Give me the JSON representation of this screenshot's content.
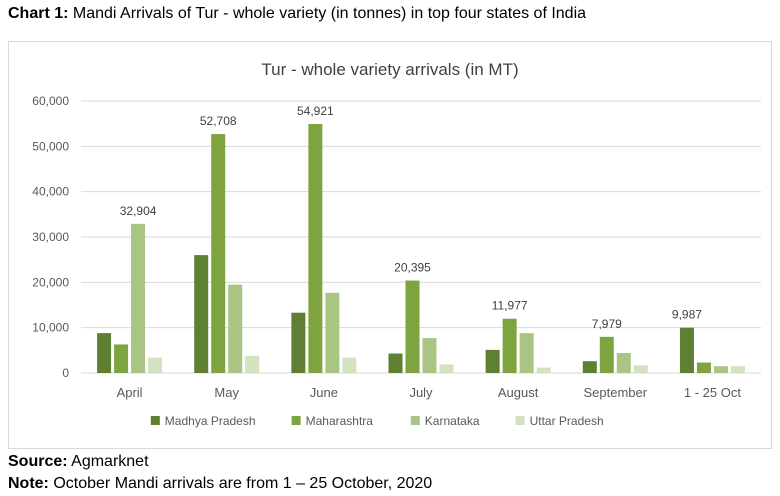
{
  "caption": {
    "prefix": "Chart 1:",
    "text": " Mandi Arrivals of Tur - whole variety (in tonnes) in top four states of India"
  },
  "source": {
    "label": "Source:",
    "text": " Agmarknet"
  },
  "note": {
    "label": "Note:",
    "text": " October Mandi arrivals are from 1 – 25 October, 2020"
  },
  "chart_data": {
    "type": "bar",
    "title": "Tur - whole variety arrivals (in MT)",
    "xlabel": "",
    "ylabel": "",
    "ylim": [
      0,
      60000
    ],
    "yticks": [
      0,
      10000,
      20000,
      30000,
      40000,
      50000,
      60000
    ],
    "ytick_labels": [
      "0",
      "10,000",
      "20,000",
      "30,000",
      "40,000",
      "50,000",
      "60,000"
    ],
    "grid": true,
    "legend_position": "bottom",
    "categories": [
      "April",
      "May",
      "June",
      "July",
      "August",
      "September",
      "1 - 25 Oct"
    ],
    "series": [
      {
        "name": "Madhya Pradesh",
        "color": "#5f7f32",
        "values": [
          8800,
          26000,
          13300,
          4300,
          5100,
          2600,
          9987
        ]
      },
      {
        "name": "Maharashtra",
        "color": "#7ea440",
        "values": [
          6300,
          52708,
          54921,
          20395,
          11977,
          7979,
          2300
        ]
      },
      {
        "name": "Karnataka",
        "color": "#a9c583",
        "values": [
          32904,
          19500,
          17700,
          7700,
          8800,
          4400,
          1500
        ]
      },
      {
        "name": "Uttar Pradesh",
        "color": "#d3e3bf",
        "values": [
          3400,
          3800,
          3400,
          1900,
          1200,
          1700,
          1500
        ]
      }
    ],
    "data_labels": [
      {
        "category": "April",
        "text": "32,904",
        "value": 32904,
        "series_index": 2
      },
      {
        "category": "May",
        "text": "52,708",
        "value": 52708,
        "series_index": 1
      },
      {
        "category": "June",
        "text": "54,921",
        "value": 54921,
        "series_index": 1
      },
      {
        "category": "July",
        "text": "20,395",
        "value": 20395,
        "series_index": 1
      },
      {
        "category": "August",
        "text": "11,977",
        "value": 11977,
        "series_index": 1
      },
      {
        "category": "September",
        "text": "7,979",
        "value": 7979,
        "series_index": 1
      },
      {
        "category": "1 - 25 Oct",
        "text": "9,987",
        "value": 9987,
        "series_index": 0
      }
    ]
  }
}
